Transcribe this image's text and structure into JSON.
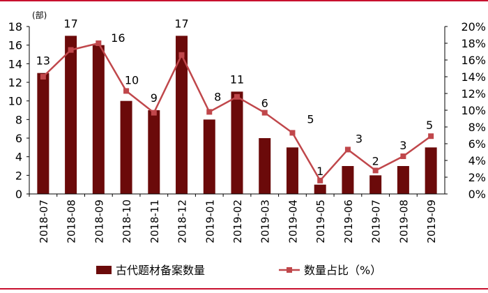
{
  "chart_data": {
    "type": "bar+line",
    "unit_label": "(部)",
    "categories": [
      "2018-07",
      "2018-08",
      "2018-09",
      "2018-10",
      "2018-11",
      "2018-12",
      "2019-01",
      "2019-02",
      "2019-03",
      "2019-04",
      "2019-05",
      "2019-06",
      "2019-07",
      "2019-08",
      "2019-09"
    ],
    "series": [
      {
        "name": "古代题材备案数量",
        "type": "bar",
        "axis": "left",
        "color": "#6b0a0a",
        "values": [
          13,
          17,
          16,
          10,
          9,
          17,
          8,
          11,
          6,
          5,
          1,
          3,
          2,
          3,
          5
        ]
      },
      {
        "name": "数量占比（%）",
        "type": "line",
        "axis": "right",
        "color": "#c0474b",
        "values": [
          14.0,
          17.2,
          18.0,
          12.3,
          9.7,
          16.6,
          9.8,
          11.6,
          9.7,
          7.3,
          1.6,
          5.3,
          2.8,
          4.5,
          6.9
        ]
      }
    ],
    "ylim_left": [
      0,
      18
    ],
    "yticks_left": [
      "0",
      "2",
      "4",
      "6",
      "8",
      "10",
      "12",
      "14",
      "16",
      "18"
    ],
    "ylim_right": [
      0,
      20
    ],
    "yticks_right": [
      "0%",
      "2%",
      "4%",
      "6%",
      "8%",
      "10%",
      "12%",
      "14%",
      "16%",
      "18%",
      "20%"
    ],
    "legend": "bottom",
    "grid": false
  }
}
